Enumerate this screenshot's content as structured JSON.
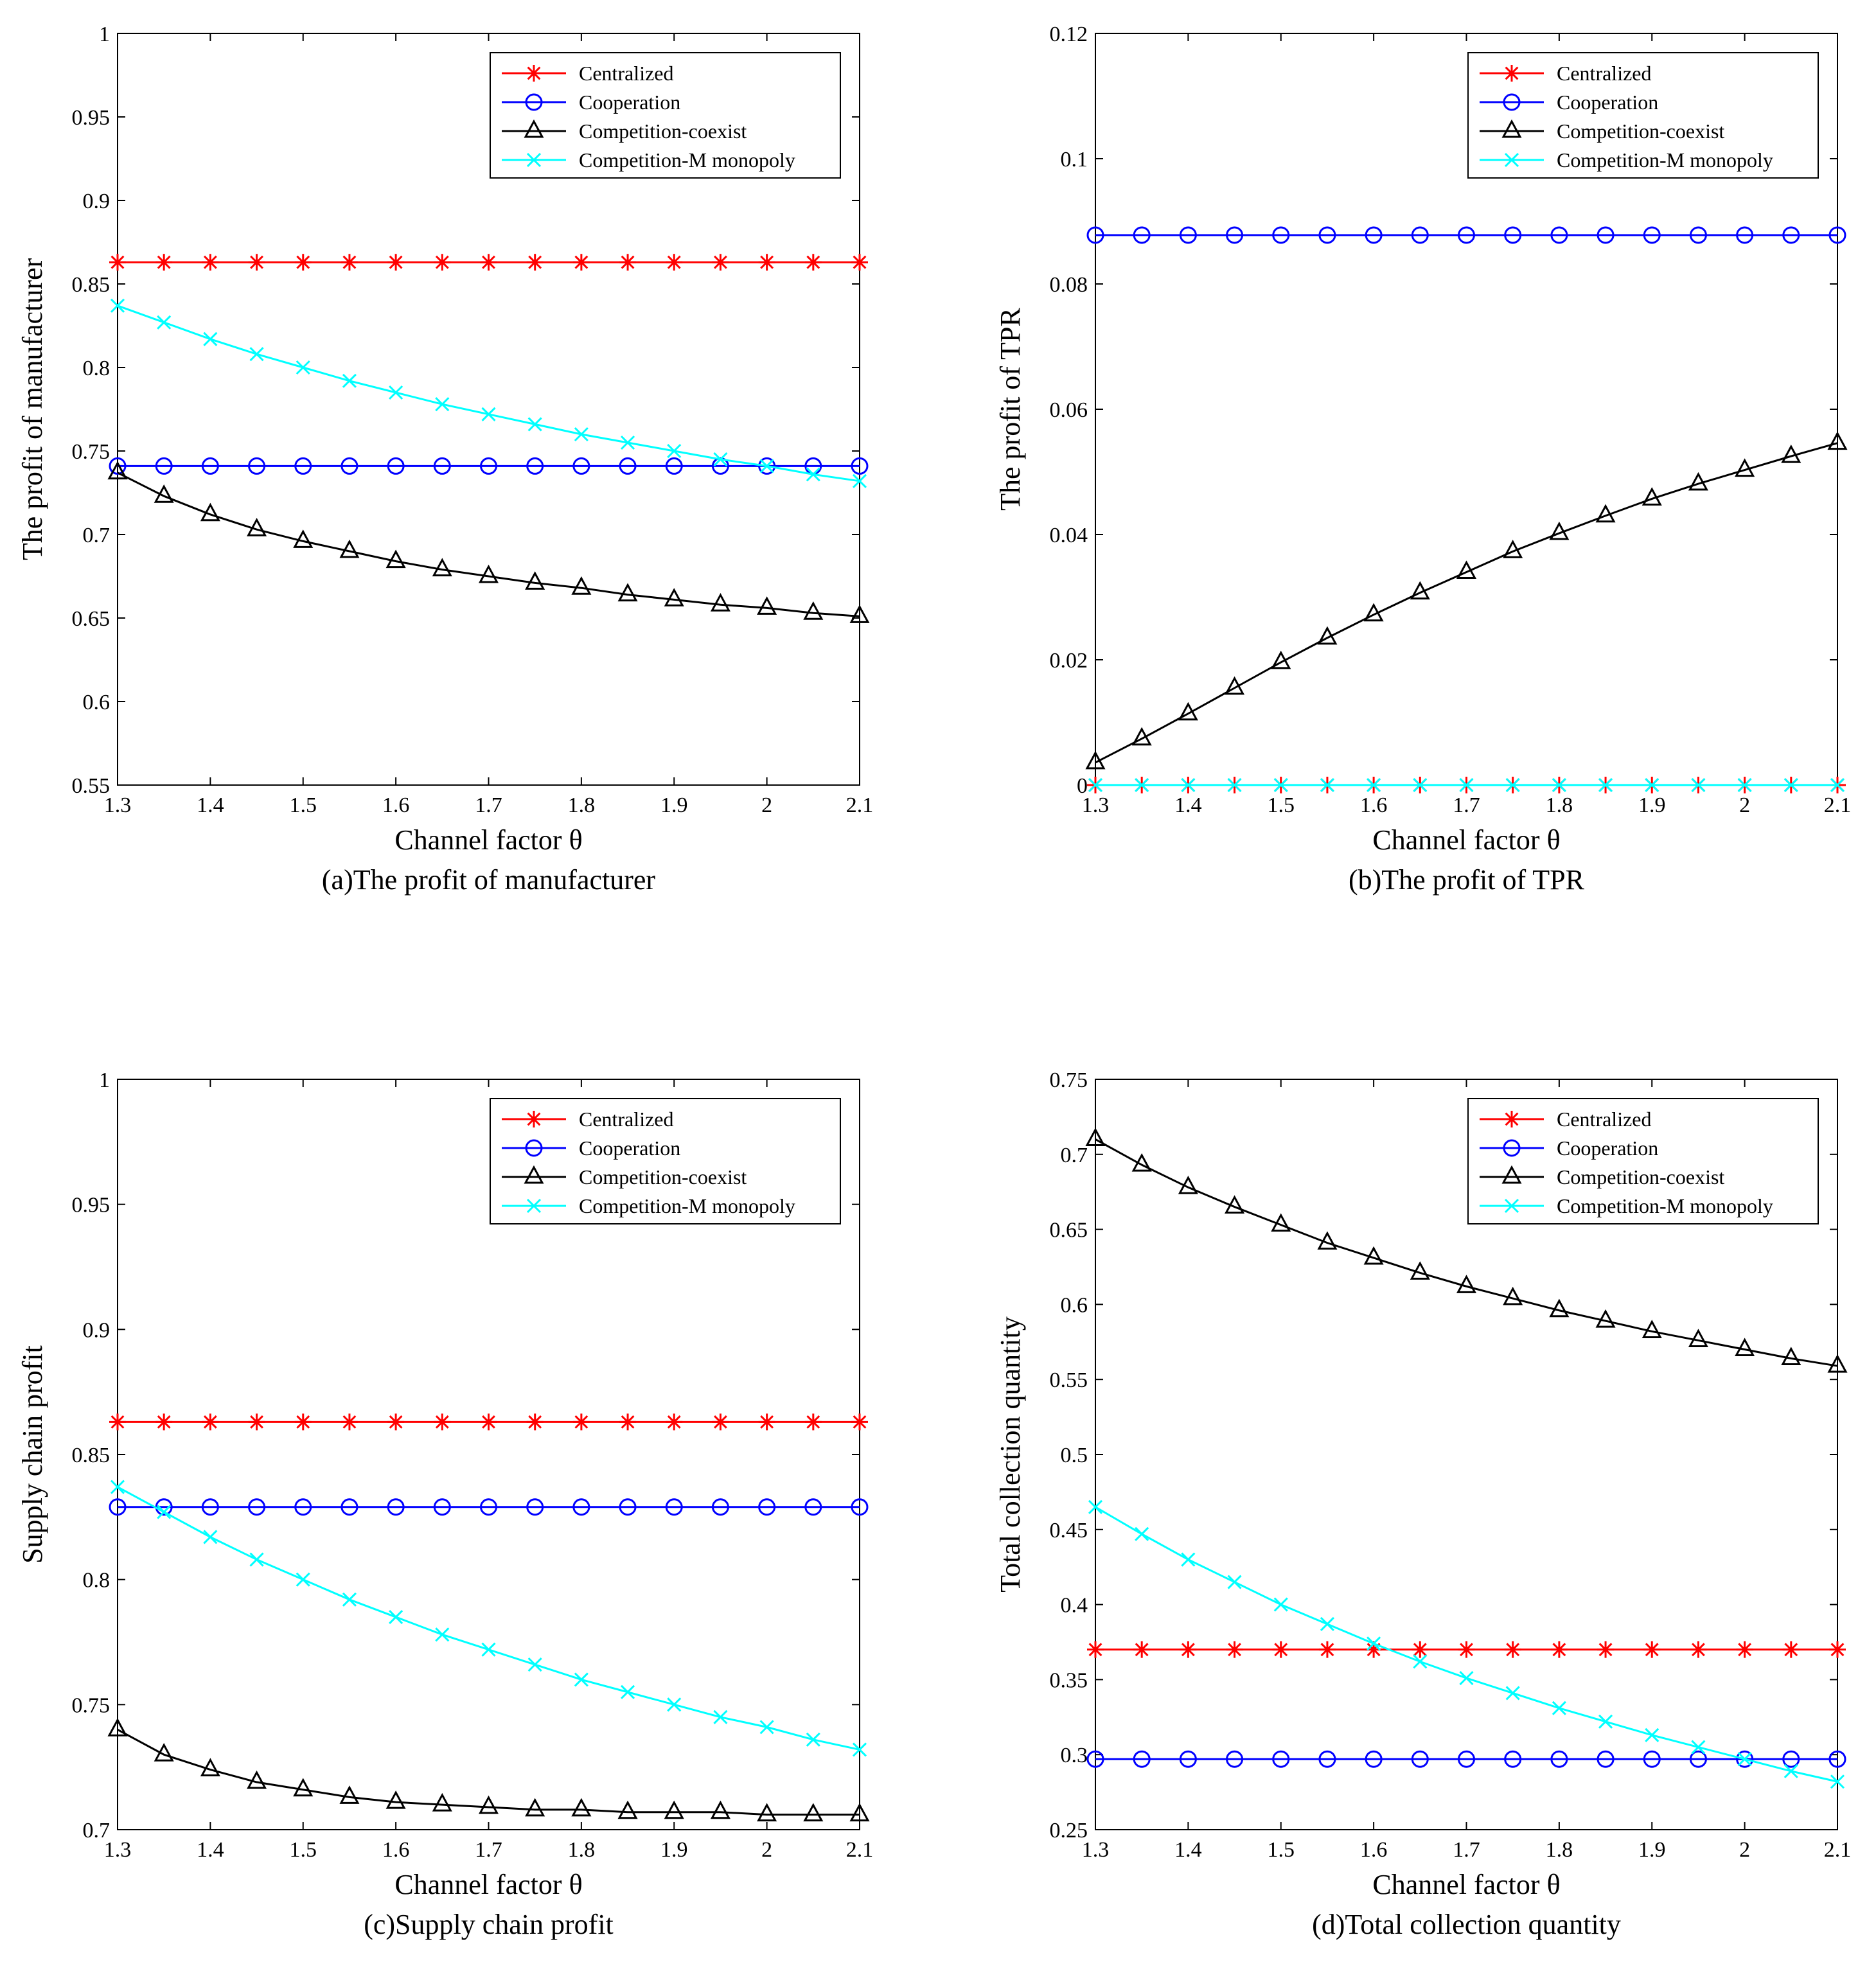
{
  "figure": {
    "x_values": [
      1.3,
      1.35,
      1.4,
      1.45,
      1.5,
      1.55,
      1.6,
      1.65,
      1.7,
      1.75,
      1.8,
      1.85,
      1.9,
      1.95,
      2.0,
      2.05,
      2.1
    ],
    "series_styles": [
      {
        "name": "Centralized",
        "color": "#ff0000",
        "marker": "star"
      },
      {
        "name": "Cooperation",
        "color": "#0000ff",
        "marker": "circle"
      },
      {
        "name": "Competition-coexist",
        "color": "#000000",
        "marker": "triangle"
      },
      {
        "name": "Competition-M monopoly",
        "color": "#00ffff",
        "marker": "x"
      }
    ]
  },
  "chart_data": [
    {
      "type": "line",
      "caption": "(a)The profit of manufacturer",
      "xlabel": "Channel factor θ",
      "ylabel": "The profit of manufacturer",
      "xlim": [
        1.3,
        2.1
      ],
      "ylim": [
        0.55,
        1
      ],
      "xticks": [
        "1.3",
        "1.4",
        "1.5",
        "1.6",
        "1.7",
        "1.8",
        "1.9",
        "2",
        "2.1"
      ],
      "yticks": [
        "0.55",
        "0.6",
        "0.65",
        "0.7",
        "0.75",
        "0.8",
        "0.85",
        "0.9",
        "0.95",
        "1"
      ],
      "legend": "top-right",
      "series": [
        {
          "name": "Centralized",
          "values": [
            0.863,
            0.863,
            0.863,
            0.863,
            0.863,
            0.863,
            0.863,
            0.863,
            0.863,
            0.863,
            0.863,
            0.863,
            0.863,
            0.863,
            0.863,
            0.863,
            0.863
          ]
        },
        {
          "name": "Cooperation",
          "values": [
            0.741,
            0.741,
            0.741,
            0.741,
            0.741,
            0.741,
            0.741,
            0.741,
            0.741,
            0.741,
            0.741,
            0.741,
            0.741,
            0.741,
            0.741,
            0.741,
            0.741
          ]
        },
        {
          "name": "Competition-coexist",
          "values": [
            0.737,
            0.723,
            0.712,
            0.703,
            0.696,
            0.69,
            0.684,
            0.679,
            0.675,
            0.671,
            0.668,
            0.664,
            0.661,
            0.658,
            0.656,
            0.653,
            0.651
          ]
        },
        {
          "name": "Competition-M monopoly",
          "values": [
            0.837,
            0.827,
            0.817,
            0.808,
            0.8,
            0.792,
            0.785,
            0.778,
            0.772,
            0.766,
            0.76,
            0.755,
            0.75,
            0.745,
            0.741,
            0.736,
            0.732
          ]
        }
      ]
    },
    {
      "type": "line",
      "caption": "(b)The profit of TPR",
      "xlabel": "Channel factor θ",
      "ylabel": "The profit of TPR",
      "xlim": [
        1.3,
        2.1
      ],
      "ylim": [
        0,
        0.12
      ],
      "xticks": [
        "1.3",
        "1.4",
        "1.5",
        "1.6",
        "1.7",
        "1.8",
        "1.9",
        "2",
        "2.1"
      ],
      "yticks": [
        "0",
        "0.02",
        "0.04",
        "0.06",
        "0.08",
        "0.1",
        "0.12"
      ],
      "legend": "top-right",
      "series": [
        {
          "name": "Centralized",
          "values": [
            0,
            0,
            0,
            0,
            0,
            0,
            0,
            0,
            0,
            0,
            0,
            0,
            0,
            0,
            0,
            0,
            0
          ]
        },
        {
          "name": "Cooperation",
          "values": [
            0.0878,
            0.0878,
            0.0878,
            0.0878,
            0.0878,
            0.0878,
            0.0878,
            0.0878,
            0.0878,
            0.0878,
            0.0878,
            0.0878,
            0.0878,
            0.0878,
            0.0878,
            0.0878,
            0.0878
          ]
        },
        {
          "name": "Competition-coexist",
          "values": [
            0.0036,
            0.0074,
            0.0114,
            0.0155,
            0.0196,
            0.0235,
            0.0272,
            0.0307,
            0.034,
            0.0373,
            0.0402,
            0.043,
            0.0457,
            0.0481,
            0.0503,
            0.0525,
            0.0546
          ]
        },
        {
          "name": "Competition-M monopoly",
          "values": [
            0,
            0,
            0,
            0,
            0,
            0,
            0,
            0,
            0,
            0,
            0,
            0,
            0,
            0,
            0,
            0,
            0
          ]
        }
      ]
    },
    {
      "type": "line",
      "caption": "(c)Supply chain profit",
      "xlabel": "Channel factor θ",
      "ylabel": "Supply chain profit",
      "xlim": [
        1.3,
        2.1
      ],
      "ylim": [
        0.7,
        1
      ],
      "xticks": [
        "1.3",
        "1.4",
        "1.5",
        "1.6",
        "1.7",
        "1.8",
        "1.9",
        "2",
        "2.1"
      ],
      "yticks": [
        "0.7",
        "0.75",
        "0.8",
        "0.85",
        "0.9",
        "0.95",
        "1"
      ],
      "legend": "top-right",
      "series": [
        {
          "name": "Centralized",
          "values": [
            0.863,
            0.863,
            0.863,
            0.863,
            0.863,
            0.863,
            0.863,
            0.863,
            0.863,
            0.863,
            0.863,
            0.863,
            0.863,
            0.863,
            0.863,
            0.863,
            0.863
          ]
        },
        {
          "name": "Cooperation",
          "values": [
            0.829,
            0.829,
            0.829,
            0.829,
            0.829,
            0.829,
            0.829,
            0.829,
            0.829,
            0.829,
            0.829,
            0.829,
            0.829,
            0.829,
            0.829,
            0.829,
            0.829
          ]
        },
        {
          "name": "Competition-coexist",
          "values": [
            0.74,
            0.73,
            0.724,
            0.719,
            0.716,
            0.713,
            0.711,
            0.71,
            0.709,
            0.708,
            0.708,
            0.707,
            0.707,
            0.707,
            0.706,
            0.706,
            0.706
          ]
        },
        {
          "name": "Competition-M monopoly",
          "values": [
            0.837,
            0.827,
            0.817,
            0.808,
            0.8,
            0.792,
            0.785,
            0.778,
            0.772,
            0.766,
            0.76,
            0.755,
            0.75,
            0.745,
            0.741,
            0.736,
            0.732
          ]
        }
      ]
    },
    {
      "type": "line",
      "caption": "(d)Total collection quantity",
      "xlabel": "Channel factor θ",
      "ylabel": "Total collection quantity",
      "xlim": [
        1.3,
        2.1
      ],
      "ylim": [
        0.25,
        0.75
      ],
      "xticks": [
        "1.3",
        "1.4",
        "1.5",
        "1.6",
        "1.7",
        "1.8",
        "1.9",
        "2",
        "2.1"
      ],
      "yticks": [
        "0.25",
        "0.3",
        "0.35",
        "0.4",
        "0.45",
        "0.5",
        "0.55",
        "0.6",
        "0.65",
        "0.7",
        "0.75"
      ],
      "legend": "top-right",
      "series": [
        {
          "name": "Centralized",
          "values": [
            0.37,
            0.37,
            0.37,
            0.37,
            0.37,
            0.37,
            0.37,
            0.37,
            0.37,
            0.37,
            0.37,
            0.37,
            0.37,
            0.37,
            0.37,
            0.37,
            0.37
          ]
        },
        {
          "name": "Cooperation",
          "values": [
            0.297,
            0.297,
            0.297,
            0.297,
            0.297,
            0.297,
            0.297,
            0.297,
            0.297,
            0.297,
            0.297,
            0.297,
            0.297,
            0.297,
            0.297,
            0.297,
            0.297
          ]
        },
        {
          "name": "Competition-coexist",
          "values": [
            0.71,
            0.693,
            0.678,
            0.665,
            0.653,
            0.641,
            0.631,
            0.621,
            0.612,
            0.604,
            0.596,
            0.589,
            0.582,
            0.576,
            0.57,
            0.564,
            0.559
          ]
        },
        {
          "name": "Competition-M monopoly",
          "values": [
            0.465,
            0.447,
            0.43,
            0.415,
            0.4,
            0.387,
            0.374,
            0.362,
            0.351,
            0.341,
            0.331,
            0.322,
            0.313,
            0.305,
            0.297,
            0.289,
            0.282
          ]
        }
      ]
    }
  ]
}
